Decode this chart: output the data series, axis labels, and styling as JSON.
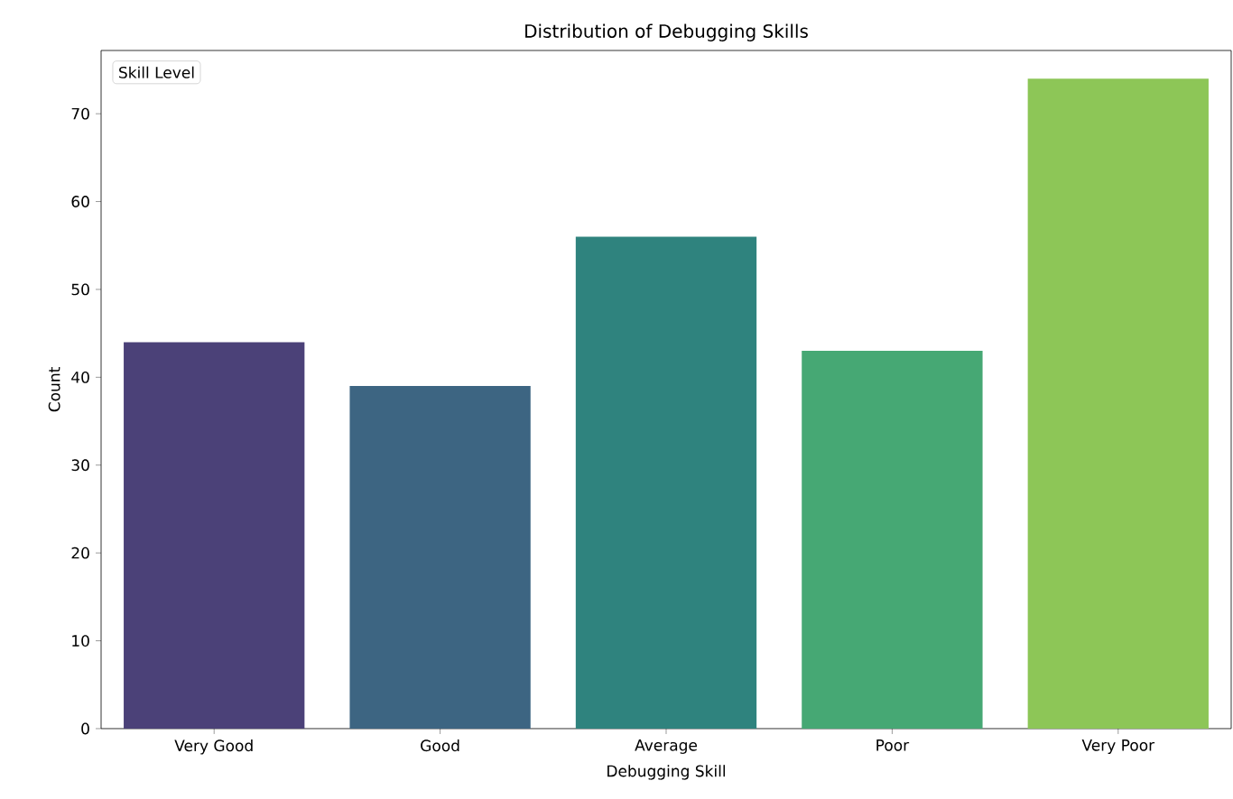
{
  "chart_data": {
    "type": "bar",
    "title": "Distribution of Debugging Skills",
    "xlabel": "Debugging Skill",
    "ylabel": "Count",
    "legend_title": "Skill Level",
    "categories": [
      "Very Good",
      "Good",
      "Average",
      "Poor",
      "Very Poor"
    ],
    "values": [
      44,
      39,
      56,
      43,
      74
    ],
    "colors": [
      "#4b4178",
      "#3d6582",
      "#2f837e",
      "#46a874",
      "#8dc657"
    ],
    "ylim": [
      0,
      77.2
    ],
    "yticks": [
      0,
      10,
      20,
      30,
      40,
      50,
      60,
      70
    ]
  }
}
